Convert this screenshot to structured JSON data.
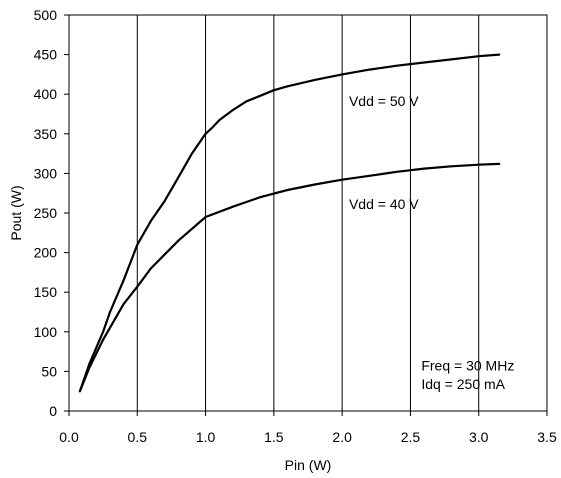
{
  "chart_data": {
    "type": "line",
    "title": "",
    "xlabel": "Pin (W)",
    "ylabel": "Pout (W)",
    "xlim": [
      0,
      3.5
    ],
    "ylim": [
      0,
      500
    ],
    "xticks": [
      "0.0",
      "0.5",
      "1.0",
      "1.5",
      "2.0",
      "2.5",
      "3.0",
      "3.5"
    ],
    "yticks": [
      "0",
      "50",
      "100",
      "150",
      "200",
      "250",
      "300",
      "350",
      "400",
      "450",
      "500"
    ],
    "grid": "vertical",
    "series": [
      {
        "name": "Vdd = 50 V",
        "x": [
          0.08,
          0.15,
          0.25,
          0.3,
          0.4,
          0.5,
          0.6,
          0.7,
          0.8,
          0.9,
          0.98,
          1.0,
          1.05,
          1.1,
          1.2,
          1.3,
          1.4,
          1.5,
          1.6,
          1.8,
          2.0,
          2.2,
          2.4,
          2.6,
          2.8,
          3.0,
          3.15
        ],
        "y": [
          25,
          60,
          100,
          125,
          165,
          210,
          240,
          265,
          295,
          325,
          345,
          350,
          358,
          367,
          380,
          391,
          398,
          405,
          410,
          418,
          425,
          431,
          436,
          440,
          444,
          448,
          450
        ]
      },
      {
        "name": "Vdd = 40 V",
        "x": [
          0.08,
          0.15,
          0.25,
          0.4,
          0.5,
          0.6,
          0.8,
          1.0,
          1.2,
          1.4,
          1.6,
          1.8,
          2.0,
          2.2,
          2.4,
          2.6,
          2.8,
          3.0,
          3.15
        ],
        "y": [
          25,
          55,
          90,
          135,
          157,
          180,
          215,
          245,
          258,
          270,
          279,
          286,
          292,
          297,
          302,
          306,
          309,
          311,
          312
        ]
      }
    ],
    "annotations": {
      "vdd50": "Vdd = 50 V",
      "vdd40": "Vdd = 40 V",
      "freq": "Freq = 30 MHz",
      "idq": "Idq = 250 mA"
    }
  }
}
